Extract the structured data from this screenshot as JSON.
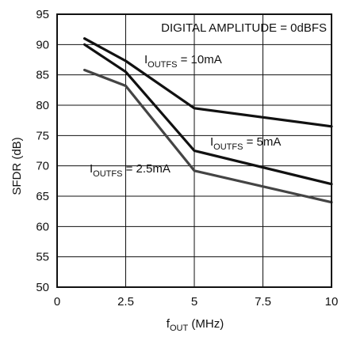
{
  "chart_data": {
    "type": "line",
    "title": "",
    "xlabel": {
      "main": "f",
      "sub": "OUT",
      "rest": " (MHz)"
    },
    "ylabel": "SFDR (dB)",
    "xlim": [
      0,
      10
    ],
    "ylim": [
      50,
      95
    ],
    "xticks": [
      "0",
      "2.5",
      "5",
      "7.5",
      "10"
    ],
    "yticks": [
      "50",
      "55",
      "60",
      "65",
      "70",
      "75",
      "80",
      "85",
      "90",
      "95"
    ],
    "grid": true,
    "annotation": "DIGITAL AMPLITUDE = 0dBFS",
    "series": [
      {
        "name": "I OUTFS = 10mA",
        "label": {
          "main": "I",
          "sub": "OUTFS",
          "rest": " = 10mA"
        },
        "color": "#111111",
        "x": [
          1,
          2.5,
          5,
          10
        ],
        "y": [
          91,
          87.3,
          79.5,
          76.5
        ]
      },
      {
        "name": "I OUTFS = 5mA",
        "label": {
          "main": "I",
          "sub": "OUTFS",
          "rest": " = 5mA"
        },
        "color": "#111111",
        "x": [
          1,
          2.5,
          5,
          10
        ],
        "y": [
          90,
          85.5,
          72.5,
          67
        ]
      },
      {
        "name": "I OUTFS = 2.5mA",
        "label": {
          "main": "I",
          "sub": "OUTFS",
          "rest": " = 2.5mA"
        },
        "color": "#444444",
        "x": [
          1,
          2.5,
          5,
          10
        ],
        "y": [
          85.8,
          83.2,
          69.2,
          64
        ]
      }
    ]
  }
}
